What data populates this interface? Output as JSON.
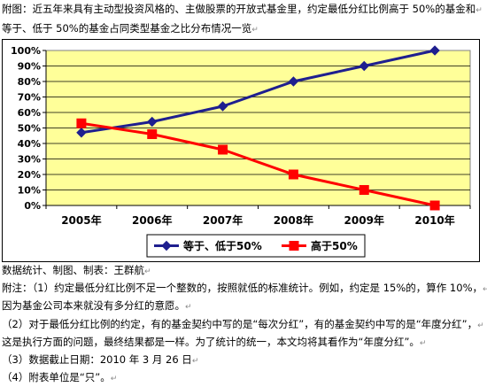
{
  "caption": {
    "line1": "附图：近五年来具有主动型投资风格的、主做股票的开放式基金里，约定最低分红比例高于 50%的基金和",
    "line2": "等于、低于 50%的基金占同类型基金之比分布情况一览",
    "return_mark": "↵"
  },
  "chart_data": {
    "type": "line",
    "categories": [
      "2005年",
      "2006年",
      "2007年",
      "2008年",
      "2009年",
      "2010年"
    ],
    "series": [
      {
        "name": "等于、低于50%",
        "values": [
          47,
          54,
          64,
          80,
          90,
          100
        ],
        "color": "#1f1f8f",
        "marker": "diamond"
      },
      {
        "name": "高于50%",
        "values": [
          53,
          46,
          36,
          20,
          10,
          0
        ],
        "color": "#ff0000",
        "marker": "square"
      }
    ],
    "ylim": [
      0,
      100
    ],
    "yticks": [
      "0%",
      "10%",
      "20%",
      "30%",
      "40%",
      "50%",
      "60%",
      "70%",
      "80%",
      "90%",
      "100%"
    ],
    "plot_bg": "#ffff99",
    "grid": true,
    "legend": "bottom"
  },
  "notes": {
    "line1": "数据统计、制图、制表：王群航",
    "line2": "附注：（1）约定最低分红比例不足一个整数的，按照就低的标准统计。例如，约定是 15%的，算作 10%，",
    "line3": "因为基金公司本来就没有多分红的意愿。",
    "line4": "（2）对于最低分红比例的约定，有的基金契约中写的是“每次分红”，有的基金契约中写的是“年度分红”，",
    "line5": "这是执行方面的问题，最终结果都是一样。为了统计的统一，本文均将其看作为“年度分红”。",
    "line6": "（3）数据截止日期：2010 年 3 月 26 日",
    "line7": "（4）附表单位是“只”。",
    "return_mark": "↵"
  }
}
